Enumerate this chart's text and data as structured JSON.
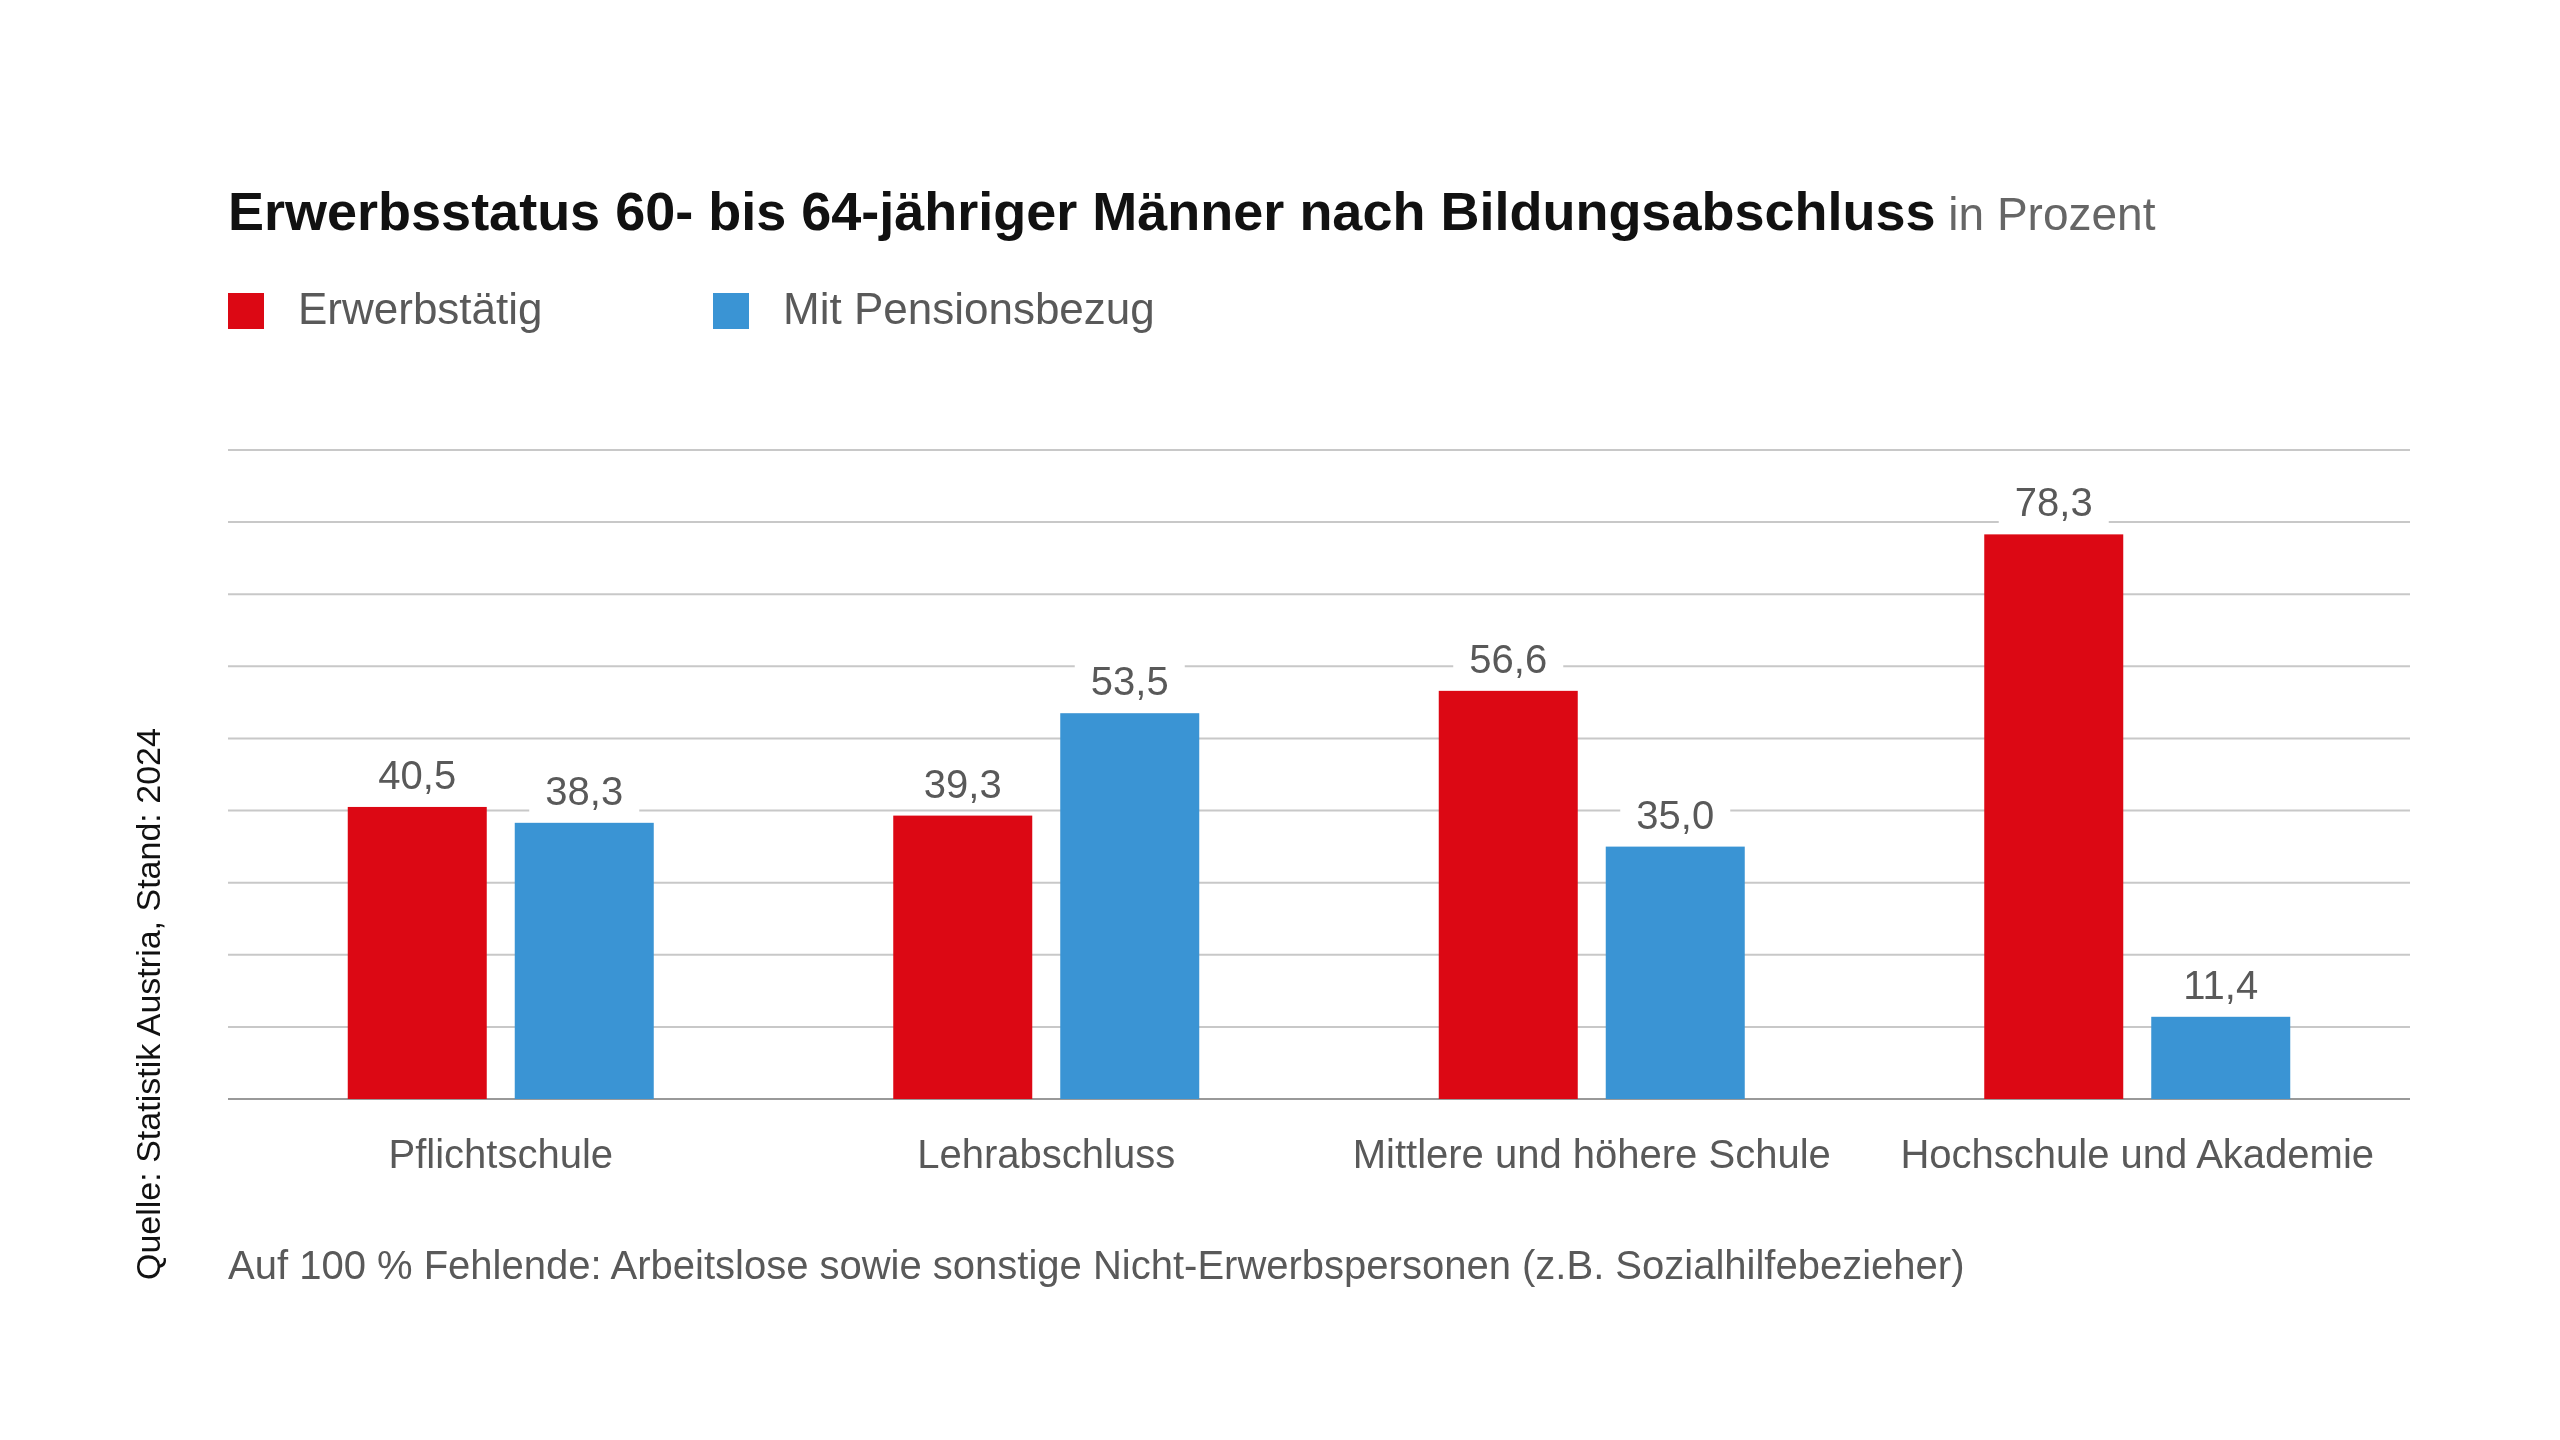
{
  "chart_data": {
    "type": "bar",
    "title": "Erwerbsstatus 60- bis 64-jähriger Männer nach Bildungsabschluss",
    "subtitle": "in Prozent",
    "categories": [
      "Pflichtschule",
      "Lehrabschluss",
      "Mittlere und höhere Schule",
      "Hochschule und Akademie"
    ],
    "series": [
      {
        "name": "Erwerbstätig",
        "color": "#dc0814",
        "values": [
          40.5,
          39.3,
          56.6,
          78.3
        ],
        "value_labels": [
          "40,5",
          "39,3",
          "56,6",
          "78,3"
        ]
      },
      {
        "name": "Mit Pensionsbezug",
        "color": "#3a94d4",
        "values": [
          38.3,
          53.5,
          35.0,
          11.4
        ],
        "value_labels": [
          "38,3",
          "53,5",
          "35,0",
          "11,4"
        ]
      }
    ],
    "tick_labels": "x",
    "grid": "y",
    "legend": "top left",
    "annotations": [
      "Auf 100 % Fehlende: Arbeitslose sowie sonstige Nicht-Erwerbspersonen (z.B. Sozialhilfebezieher)",
      "Quelle: Statistik Austria, Stand: 2024"
    ]
  }
}
